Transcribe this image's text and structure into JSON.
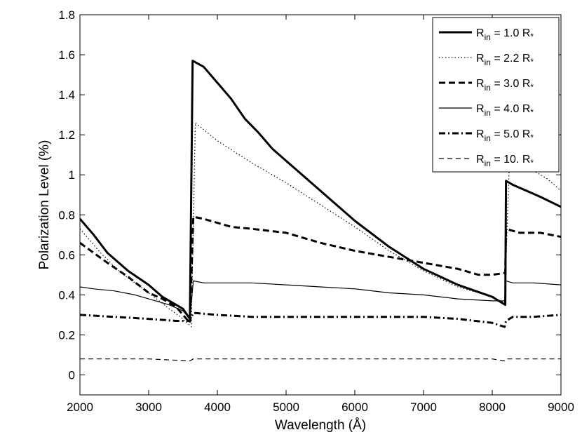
{
  "chart_data": {
    "type": "line",
    "xlabel": "Wavelength (Å)",
    "ylabel": "Polarization Level (%)",
    "xlim": [
      2000,
      9000
    ],
    "ylim": [
      -0.1,
      1.8
    ],
    "xticks": [
      2000,
      3000,
      4000,
      5000,
      6000,
      7000,
      8000,
      9000
    ],
    "xtick_labels": [
      "2000",
      "3000",
      "4000",
      "5000",
      "6000",
      "7000",
      "8000",
      "9000"
    ],
    "yticks": [
      0,
      0.2,
      0.4,
      0.6,
      0.8,
      1.0,
      1.2,
      1.4,
      1.6,
      1.8
    ],
    "ytick_labels": [
      "0",
      "0.2",
      "0.4",
      "0.6",
      "0.8",
      "1",
      "1.2",
      "1.4",
      "1.6",
      "1.8"
    ],
    "grid": false,
    "legend_position": "top-right",
    "series": [
      {
        "name": "R_in = 1.0 R_*",
        "legend": {
          "main": "R",
          "sub": "in",
          "mid": " = 1.0 R",
          "sup": "*"
        },
        "style": "solid-thick",
        "points": [
          [
            2000,
            0.78
          ],
          [
            2200,
            0.7
          ],
          [
            2400,
            0.61
          ],
          [
            2700,
            0.52
          ],
          [
            3000,
            0.45
          ],
          [
            3200,
            0.39
          ],
          [
            3400,
            0.35
          ],
          [
            3500,
            0.33
          ],
          [
            3600,
            0.28
          ],
          [
            3640,
            1.57
          ],
          [
            3800,
            1.54
          ],
          [
            4000,
            1.46
          ],
          [
            4200,
            1.38
          ],
          [
            4400,
            1.28
          ],
          [
            4600,
            1.21
          ],
          [
            4800,
            1.13
          ],
          [
            5000,
            1.07
          ],
          [
            5500,
            0.92
          ],
          [
            6000,
            0.77
          ],
          [
            6500,
            0.64
          ],
          [
            7000,
            0.53
          ],
          [
            7500,
            0.45
          ],
          [
            8000,
            0.39
          ],
          [
            8190,
            0.35
          ],
          [
            8200,
            0.97
          ],
          [
            8300,
            0.95
          ],
          [
            8500,
            0.92
          ],
          [
            8700,
            0.89
          ],
          [
            9000,
            0.84
          ]
        ]
      },
      {
        "name": "R_in = 2.2 R_*",
        "legend": {
          "main": "R",
          "sub": "in",
          "mid": " = 2.2 R",
          "sup": "*"
        },
        "style": "dotted",
        "points": [
          [
            2000,
            0.73
          ],
          [
            2300,
            0.61
          ],
          [
            2600,
            0.51
          ],
          [
            3000,
            0.41
          ],
          [
            3300,
            0.33
          ],
          [
            3500,
            0.28
          ],
          [
            3620,
            0.24
          ],
          [
            3680,
            1.26
          ],
          [
            4000,
            1.17
          ],
          [
            4500,
            1.06
          ],
          [
            5000,
            0.96
          ],
          [
            5500,
            0.85
          ],
          [
            6000,
            0.74
          ],
          [
            6500,
            0.62
          ],
          [
            7000,
            0.52
          ],
          [
            7500,
            0.44
          ],
          [
            8000,
            0.39
          ],
          [
            8180,
            0.36
          ],
          [
            8250,
            1.07
          ],
          [
            8500,
            1.04
          ],
          [
            8800,
            0.98
          ],
          [
            9000,
            0.92
          ]
        ]
      },
      {
        "name": "R_in = 3.0 R_*",
        "legend": {
          "main": "R",
          "sub": "in",
          "mid": " = 3.0 R",
          "sup": "*"
        },
        "style": "dashed-thick",
        "points": [
          [
            2000,
            0.66
          ],
          [
            2200,
            0.61
          ],
          [
            2400,
            0.56
          ],
          [
            2700,
            0.49
          ],
          [
            3000,
            0.41
          ],
          [
            3200,
            0.38
          ],
          [
            3400,
            0.34
          ],
          [
            3600,
            0.26
          ],
          [
            3650,
            0.79
          ],
          [
            3800,
            0.78
          ],
          [
            4000,
            0.76
          ],
          [
            4200,
            0.74
          ],
          [
            4500,
            0.73
          ],
          [
            5000,
            0.71
          ],
          [
            5500,
            0.66
          ],
          [
            6000,
            0.62
          ],
          [
            6500,
            0.59
          ],
          [
            7000,
            0.56
          ],
          [
            7500,
            0.53
          ],
          [
            7800,
            0.5
          ],
          [
            8000,
            0.5
          ],
          [
            8190,
            0.51
          ],
          [
            8200,
            0.73
          ],
          [
            8400,
            0.71
          ],
          [
            8700,
            0.71
          ],
          [
            9000,
            0.69
          ]
        ]
      },
      {
        "name": "R_in = 4.0 R_*",
        "legend": {
          "main": "R",
          "sub": "in",
          "mid": " = 4.0 R",
          "sup": "*"
        },
        "style": "solid-thin",
        "points": [
          [
            2000,
            0.44
          ],
          [
            2200,
            0.43
          ],
          [
            2500,
            0.42
          ],
          [
            2800,
            0.4
          ],
          [
            3000,
            0.38
          ],
          [
            3300,
            0.35
          ],
          [
            3500,
            0.32
          ],
          [
            3600,
            0.28
          ],
          [
            3650,
            0.47
          ],
          [
            3800,
            0.46
          ],
          [
            4000,
            0.46
          ],
          [
            4500,
            0.46
          ],
          [
            5000,
            0.45
          ],
          [
            5500,
            0.44
          ],
          [
            6000,
            0.43
          ],
          [
            6500,
            0.41
          ],
          [
            7000,
            0.4
          ],
          [
            7500,
            0.38
          ],
          [
            8000,
            0.37
          ],
          [
            8180,
            0.37
          ],
          [
            8200,
            0.47
          ],
          [
            8300,
            0.46
          ],
          [
            8600,
            0.46
          ],
          [
            9000,
            0.45
          ]
        ]
      },
      {
        "name": "R_in = 5.0 R_*",
        "legend": {
          "main": "R",
          "sub": "in",
          "mid": " = 5.0 R",
          "sup": "*"
        },
        "style": "dashdot-thick",
        "points": [
          [
            2000,
            0.3
          ],
          [
            2500,
            0.29
          ],
          [
            3000,
            0.28
          ],
          [
            3400,
            0.27
          ],
          [
            3600,
            0.27
          ],
          [
            3650,
            0.31
          ],
          [
            4000,
            0.3
          ],
          [
            4500,
            0.29
          ],
          [
            5000,
            0.29
          ],
          [
            5500,
            0.29
          ],
          [
            6000,
            0.29
          ],
          [
            6500,
            0.29
          ],
          [
            7000,
            0.29
          ],
          [
            7500,
            0.28
          ],
          [
            8000,
            0.26
          ],
          [
            8180,
            0.24
          ],
          [
            8200,
            0.27
          ],
          [
            8300,
            0.29
          ],
          [
            8600,
            0.29
          ],
          [
            9000,
            0.3
          ]
        ]
      },
      {
        "name": "R_in = 10. R_*",
        "legend": {
          "main": "R",
          "sub": "in",
          "mid": " = 10. R",
          "sup": "*"
        },
        "style": "dashed-thin",
        "points": [
          [
            2000,
            0.08
          ],
          [
            2500,
            0.08
          ],
          [
            3000,
            0.08
          ],
          [
            3600,
            0.07
          ],
          [
            3650,
            0.08
          ],
          [
            4000,
            0.08
          ],
          [
            5000,
            0.08
          ],
          [
            6000,
            0.08
          ],
          [
            7000,
            0.08
          ],
          [
            8000,
            0.08
          ],
          [
            8180,
            0.07
          ],
          [
            8200,
            0.08
          ],
          [
            9000,
            0.08
          ]
        ]
      }
    ]
  }
}
